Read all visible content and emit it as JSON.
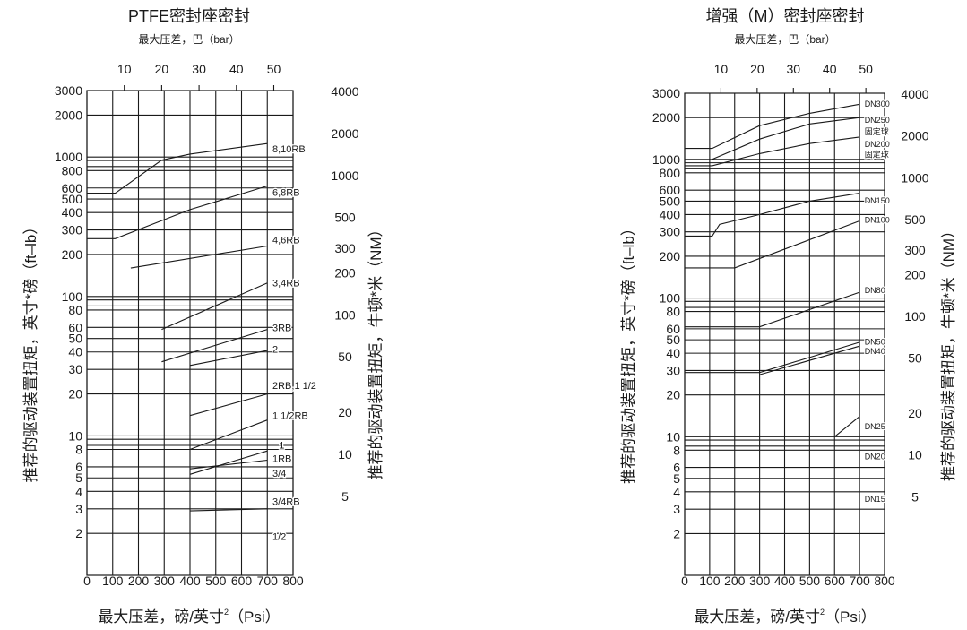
{
  "charts": [
    {
      "title": "PTFE密封座密封",
      "top_axis_label": "最大压差，巴（bar）",
      "xlabel_main": "最大压差，磅/英寸",
      "xlabel_sup": "2",
      "xlabel_unit": "（Psi）",
      "ylabel_left": "推荐的驱动装置扭矩，英寸*磅（ft–lb）",
      "ylabel_right": "推荐的驱动装置扭矩，牛顿*米（NM）"
    },
    {
      "title": "增强（M）密封座密封",
      "top_axis_label": "最大压差，巴（bar）",
      "xlabel_main": "最大压差，磅/英寸",
      "xlabel_sup": "2",
      "xlabel_unit": "（Psi）",
      "ylabel_left": "推荐的驱动装置扭矩，英寸*磅（ft–lb）",
      "ylabel_right": "推荐的驱动装置扭矩，牛顿*米（NM）"
    }
  ],
  "chart_data": [
    {
      "type": "line",
      "title": "PTFE密封座密封",
      "x_unit": "Psi",
      "xlim": [
        0,
        800
      ],
      "y_scale": "log",
      "ylim": [
        1,
        3000
      ],
      "x_ticks": [
        "0",
        "100",
        "200",
        "300",
        "400",
        "500",
        "600",
        "700",
        "800"
      ],
      "top_ticks": [
        "10",
        "20",
        "30",
        "40",
        "50"
      ],
      "left_ticks": [
        "3000",
        "2000",
        "1000",
        "800",
        "600",
        "500",
        "400",
        "300",
        "200",
        "100",
        "80",
        "60",
        "50",
        "40",
        "30",
        "20",
        "10",
        "8",
        "6",
        "5",
        "4",
        "3",
        "2"
      ],
      "right_ticks": [
        "4000",
        "2000",
        "1000",
        "500",
        "300",
        "200",
        "100",
        "50",
        "20",
        "10",
        "5"
      ],
      "series": [
        {
          "name": "8,10RB",
          "label": "8,10RB",
          "x": [
            0,
            110,
            290,
            400,
            700
          ],
          "y": [
            550,
            550,
            950,
            1050,
            1250
          ]
        },
        {
          "name": "6,8RB",
          "label": "6,8RB",
          "x": [
            0,
            110,
            400,
            700
          ],
          "y": [
            260,
            260,
            420,
            620
          ]
        },
        {
          "name": "4,6RB",
          "label": "4,6RB",
          "x": [
            170,
            700
          ],
          "y": [
            160,
            230
          ]
        },
        {
          "name": "3,4RB",
          "label": "3,4RB",
          "x": [
            290,
            700
          ],
          "y": [
            58,
            125
          ]
        },
        {
          "name": "3RB",
          "label": "3RB",
          "x": [
            290,
            700
          ],
          "y": [
            34,
            58
          ]
        },
        {
          "name": "2",
          "label": "2",
          "x": [
            400,
            700
          ],
          "y": [
            32,
            41
          ]
        },
        {
          "name": "2RB,1 1/2",
          "label": "2RB,1 1/2",
          "x": [
            400,
            700
          ],
          "y": [
            14,
            20
          ]
        },
        {
          "name": "1 1/2RB",
          "label": "1 1/2RB",
          "x": [
            400,
            700
          ],
          "y": [
            8,
            13
          ]
        },
        {
          "name": "1",
          "label": "1",
          "x": [
            400,
            700
          ],
          "y": [
            5.3,
            7.8
          ]
        },
        {
          "name": "1RB",
          "label": "1RB",
          "x": [
            400,
            700
          ],
          "y": [
            5.8,
            6.7
          ]
        },
        {
          "name": "3/4RB",
          "label": "3/4RB",
          "x": [
            400,
            700
          ],
          "y": [
            2.9,
            3
          ]
        }
      ],
      "line_labels": [
        {
          "text": "8,10RB",
          "x": 720,
          "y": 1150
        },
        {
          "text": "6,8RB",
          "x": 720,
          "y": 560
        },
        {
          "text": "4,6RB",
          "x": 720,
          "y": 255
        },
        {
          "text": "3,4RB",
          "x": 720,
          "y": 125
        },
        {
          "text": "3RB",
          "x": 720,
          "y": 60
        },
        {
          "text": "2",
          "x": 720,
          "y": 42
        },
        {
          "text": "2RB,1 1/2",
          "x": 720,
          "y": 23
        },
        {
          "text": "1 1/2RB",
          "x": 720,
          "y": 14
        },
        {
          "text": "1",
          "x": 745,
          "y": 8.6
        },
        {
          "text": "1RB",
          "x": 720,
          "y": 6.9
        },
        {
          "text": "3/4",
          "x": 720,
          "y": 5.4
        },
        {
          "text": "3/4RB",
          "x": 720,
          "y": 3.4
        },
        {
          "text": "1/2",
          "x": 720,
          "y": 1.9
        }
      ]
    },
    {
      "type": "line",
      "title": "增强（M）密封座密封",
      "x_unit": "Psi",
      "xlim": [
        0,
        800
      ],
      "y_scale": "log",
      "ylim": [
        1,
        3000
      ],
      "x_ticks": [
        "0",
        "100",
        "200",
        "300",
        "400",
        "500",
        "600",
        "700",
        "800"
      ],
      "top_ticks": [
        "10",
        "20",
        "30",
        "40",
        "50"
      ],
      "left_ticks": [
        "3000",
        "2000",
        "1000",
        "800",
        "600",
        "500",
        "400",
        "300",
        "200",
        "100",
        "80",
        "60",
        "50",
        "40",
        "30",
        "20",
        "10",
        "8",
        "6",
        "5",
        "4",
        "3",
        "2"
      ],
      "right_ticks": [
        "4000",
        "2000",
        "1000",
        "500",
        "300",
        "200",
        "100",
        "50",
        "20",
        "10",
        "5"
      ],
      "series": [
        {
          "name": "DN300",
          "label": "DN300",
          "x": [
            0,
            110,
            300,
            500,
            700
          ],
          "y": [
            1200,
            1200,
            1750,
            2150,
            2500
          ]
        },
        {
          "name": "DN250",
          "label": "DN250",
          "x": [
            110,
            300,
            500,
            700
          ],
          "y": [
            1000,
            1400,
            1800,
            2000
          ]
        },
        {
          "name": "DN200",
          "label": "DN200",
          "x": [
            0,
            110,
            300,
            500,
            700
          ],
          "y": [
            900,
            900,
            1100,
            1300,
            1450
          ]
        },
        {
          "name": "DN150",
          "label": "DN150",
          "x": [
            0,
            110,
            140,
            300,
            500,
            700
          ],
          "y": [
            280,
            280,
            340,
            400,
            500,
            570
          ]
        },
        {
          "name": "DN100",
          "label": "DN100",
          "x": [
            0,
            200,
            700
          ],
          "y": [
            165,
            165,
            360
          ]
        },
        {
          "name": "DN80",
          "label": "DN80",
          "x": [
            0,
            300,
            700
          ],
          "y": [
            62,
            62,
            110
          ]
        },
        {
          "name": "DN50",
          "label": "DN50",
          "x": [
            0,
            300,
            700
          ],
          "y": [
            29,
            29,
            48
          ]
        },
        {
          "name": "DN40",
          "label": "DN40",
          "x": [
            300,
            700
          ],
          "y": [
            28,
            45
          ]
        },
        {
          "name": "DN25",
          "label": "DN25",
          "x": [
            600,
            700
          ],
          "y": [
            10,
            14
          ]
        }
      ],
      "line_labels": [
        {
          "text": "DN300",
          "x": 720,
          "y": 2550
        },
        {
          "text": "DN250",
          "x": 720,
          "y": 1950
        },
        {
          "text": "固定球",
          "x": 720,
          "y": 1600
        },
        {
          "text": "DN200",
          "x": 720,
          "y": 1300
        },
        {
          "text": "固定球",
          "x": 720,
          "y": 1100
        },
        {
          "text": "DN150",
          "x": 720,
          "y": 510
        },
        {
          "text": "DN100",
          "x": 720,
          "y": 370
        },
        {
          "text": "DN80",
          "x": 720,
          "y": 115
        },
        {
          "text": "DN50",
          "x": 720,
          "y": 49
        },
        {
          "text": "DN40",
          "x": 720,
          "y": 42
        },
        {
          "text": "DN25",
          "x": 720,
          "y": 12
        },
        {
          "text": "DN20",
          "x": 720,
          "y": 7.3
        },
        {
          "text": "DN15",
          "x": 720,
          "y": 3.6
        }
      ]
    }
  ]
}
